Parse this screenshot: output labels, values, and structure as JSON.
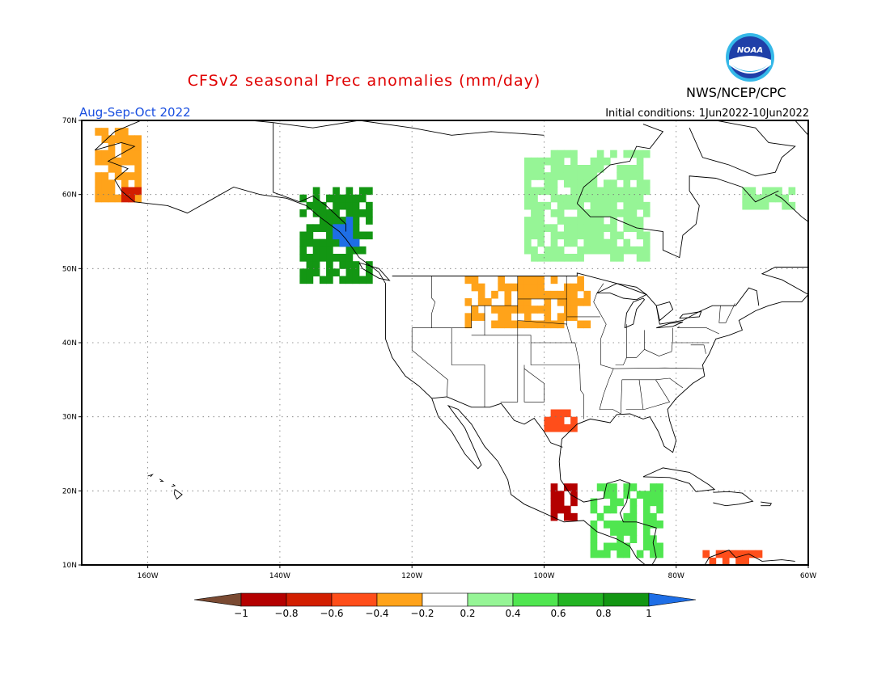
{
  "title": "CFSv2 seasonal Prec anomalies (mm/day)",
  "agency": "NWS/NCEP/CPC",
  "logo_text": "NOAA",
  "season": "Aug-Sep-Oct 2022",
  "initial_conditions": "Initial conditions: 1Jun2022-10Jun2022",
  "map": {
    "lon_range": [
      -170,
      -60
    ],
    "lat_range": [
      10,
      70
    ],
    "lon_ticks": [
      {
        "value": -160,
        "label": "160W"
      },
      {
        "value": -140,
        "label": "140W"
      },
      {
        "value": -120,
        "label": "120W"
      },
      {
        "value": -100,
        "label": "100W"
      },
      {
        "value": -80,
        "label": "80W"
      },
      {
        "value": -60,
        "label": "60W"
      }
    ],
    "lat_ticks": [
      {
        "value": 70,
        "label": "70N"
      },
      {
        "value": 60,
        "label": "60N"
      },
      {
        "value": 50,
        "label": "50N"
      },
      {
        "value": 40,
        "label": "40N"
      },
      {
        "value": 30,
        "label": "30N"
      },
      {
        "value": 20,
        "label": "20N"
      },
      {
        "value": 10,
        "label": "10N"
      }
    ]
  },
  "colorbar": {
    "levels": [
      "-1",
      "-0.8",
      "-0.6",
      "-0.4",
      "-0.2",
      "0.2",
      "0.4",
      "0.6",
      "0.8",
      "1"
    ],
    "colors": [
      "#7a4a32",
      "#b40000",
      "#d21e00",
      "#ff4e1a",
      "#ffa31a",
      "#ffffff",
      "#96f596",
      "#50e650",
      "#23b423",
      "#139613",
      "#1e6ee6"
    ]
  },
  "anomaly_regions": [
    {
      "name": "alaska-west",
      "value": "-0.2 to -0.4",
      "color": "#ffa31a",
      "lon": [
        -168,
        -161
      ],
      "lat": [
        59,
        69
      ]
    },
    {
      "name": "alaska-sw-spot",
      "value": "-0.6 to -0.8",
      "color": "#d21e00",
      "lon": [
        -164,
        -161
      ],
      "lat": [
        59,
        61
      ]
    },
    {
      "name": "bc-coast",
      "value": "0.6 to 1+",
      "color": "#139613",
      "lon": [
        -137,
        -126
      ],
      "lat": [
        48,
        61
      ]
    },
    {
      "name": "bc-coast-max",
      "value": ">1",
      "color": "#1e6ee6",
      "lon": [
        -132,
        -128
      ],
      "lat": [
        53,
        57
      ]
    },
    {
      "name": "hudson-bay",
      "value": "0.2 to 0.6",
      "color": "#96f596",
      "lon": [
        -103,
        -84
      ],
      "lat": [
        51,
        66
      ]
    },
    {
      "name": "northern-plains",
      "value": "-0.2 to -0.4",
      "color": "#ffa31a",
      "lon": [
        -112,
        -93
      ],
      "lat": [
        42,
        49
      ]
    },
    {
      "name": "texas-gulf",
      "value": "-0.4 to -0.6",
      "color": "#ff4e1a",
      "lon": [
        -100,
        -95
      ],
      "lat": [
        28,
        31
      ]
    },
    {
      "name": "southern-mexico",
      "value": "-0.6 to -1",
      "color": "#b40000",
      "lon": [
        -99,
        -95
      ],
      "lat": [
        16,
        21
      ]
    },
    {
      "name": "central-america",
      "value": "0.2 to 0.8",
      "color": "#50e650",
      "lon": [
        -93,
        -82
      ],
      "lat": [
        11,
        21
      ]
    },
    {
      "name": "quebec-east",
      "value": "0.2 to 0.4",
      "color": "#96f596",
      "lon": [
        -70,
        -62
      ],
      "lat": [
        58,
        61
      ]
    },
    {
      "name": "caribbean-south",
      "value": "-0.4 to -0.8",
      "color": "#ff4e1a",
      "lon": [
        -76,
        -67
      ],
      "lat": [
        10,
        12
      ]
    }
  ]
}
